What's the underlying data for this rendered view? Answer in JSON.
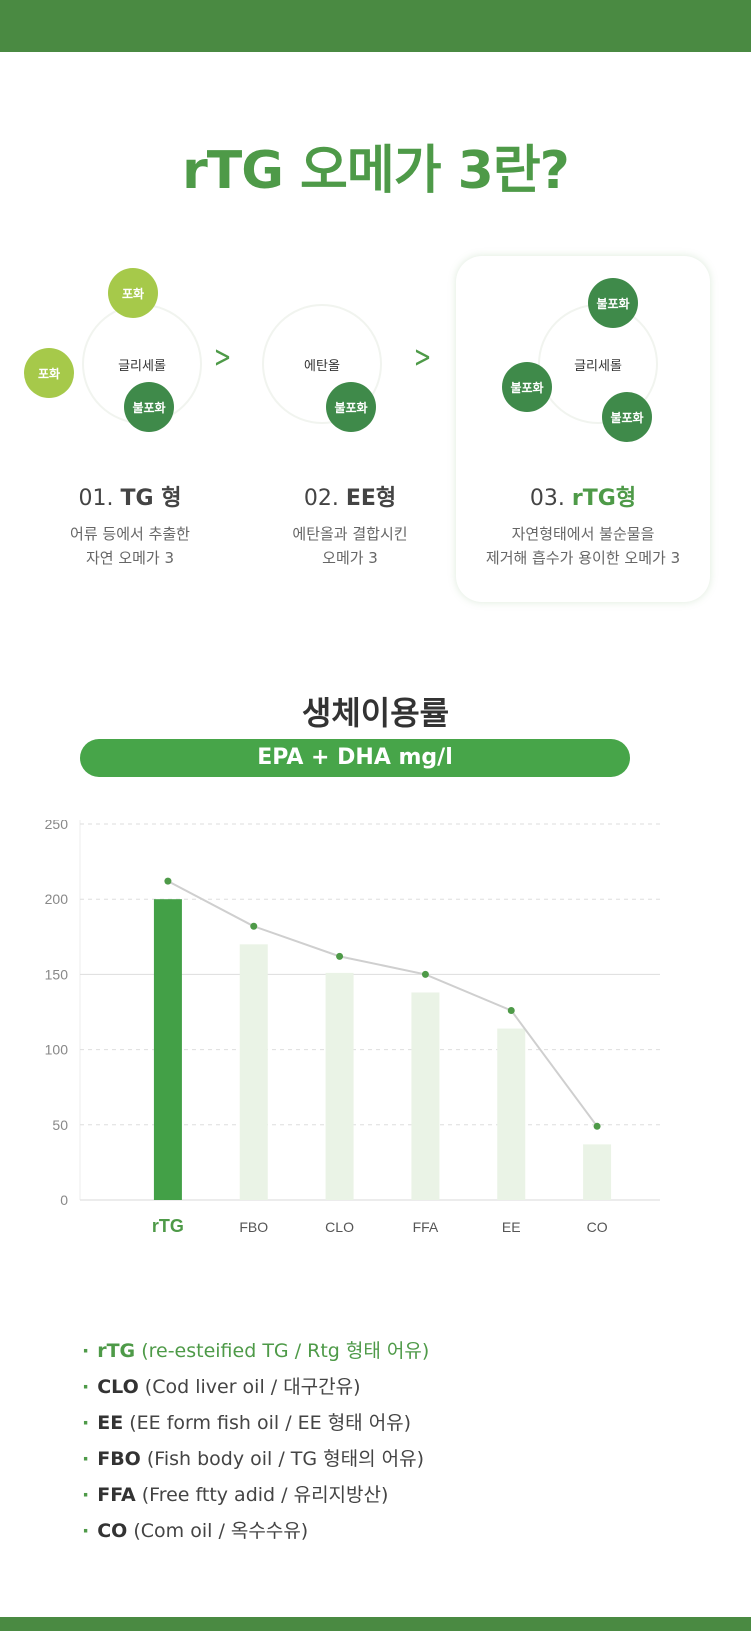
{
  "title": "rTG 오메가 3란?",
  "types": [
    {
      "number": "01.",
      "name": "TG 형",
      "center": "글리세롤",
      "bubbles": [
        "포화",
        "포화",
        "불포화"
      ],
      "desc_lines": [
        "어류 등에서 추출한",
        "자연 오메가 3"
      ]
    },
    {
      "number": "02.",
      "name": "EE형",
      "center": "에탄올",
      "bubbles": [
        "불포화"
      ],
      "desc_lines": [
        "에탄올과 결합시킨",
        "오메가 3"
      ]
    },
    {
      "number": "03.",
      "name": "rTG형",
      "center": "글리세롤",
      "bubbles": [
        "불포화",
        "불포화",
        "불포화"
      ],
      "desc_lines": [
        "자연형태에서 불순물을",
        "제거해 흡수가 용이한 오메가 3"
      ]
    }
  ],
  "arrow_icon": "chevron-right-icon",
  "chart_section": {
    "title": "생체이용률",
    "pill_label": "EPA + DHA mg/l"
  },
  "chart_data": {
    "type": "bar",
    "categories": [
      "rTG",
      "FBO",
      "CLO",
      "FFA",
      "EE",
      "CO"
    ],
    "series": [
      {
        "values": [
          200,
          170,
          151,
          138,
          114,
          37
        ]
      },
      {
        "type": "line",
        "values": [
          212,
          182,
          162,
          150,
          126,
          49
        ]
      }
    ],
    "ylim": [
      0,
      250
    ],
    "yticks": [
      0,
      50,
      100,
      150,
      200,
      250
    ],
    "grid": true,
    "highlight_category": "rTG",
    "colors": {
      "highlight_bar": "#43a047",
      "bar": "#eaf3e6",
      "line": "#cfcfcf",
      "point": "#4e9a48"
    }
  },
  "legend": [
    {
      "code": "rTG",
      "desc": "(re-esteified TG / Rtg 형태 어유)",
      "highlight": true
    },
    {
      "code": "CLO",
      "desc": "(Cod liver oil / 대구간유)"
    },
    {
      "code": "EE",
      "desc": "(EE form fish oil / EE 형태 어유)"
    },
    {
      "code": "FBO",
      "desc": "(Fish body oil / TG 형태의 어유)"
    },
    {
      "code": "FFA",
      "desc": "(Free ftty adid / 유리지방산)"
    },
    {
      "code": "CO",
      "desc": "(Com oil / 옥수수유)"
    }
  ],
  "colors": {
    "brand_green": "#4a8a42",
    "accent_green": "#47a549",
    "light_bubble": "#a6c94a",
    "dark_bubble": "#3f8a4a"
  }
}
